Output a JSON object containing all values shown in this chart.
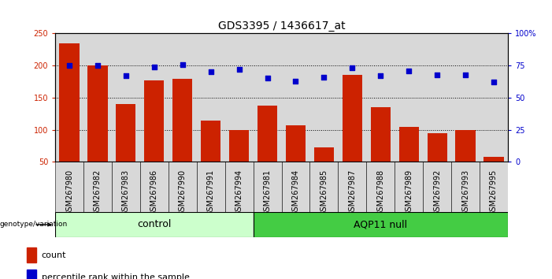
{
  "title": "GDS3395 / 1436617_at",
  "categories": [
    "GSM267980",
    "GSM267982",
    "GSM267983",
    "GSM267986",
    "GSM267990",
    "GSM267991",
    "GSM267994",
    "GSM267981",
    "GSM267984",
    "GSM267985",
    "GSM267987",
    "GSM267988",
    "GSM267989",
    "GSM267992",
    "GSM267993",
    "GSM267995"
  ],
  "bar_values": [
    235,
    200,
    140,
    177,
    179,
    114,
    100,
    138,
    107,
    72,
    186,
    135,
    105,
    95,
    100,
    58
  ],
  "percentile_values": [
    75,
    75,
    67,
    74,
    76,
    70,
    72,
    65,
    63,
    66,
    73,
    67,
    71,
    68,
    68,
    62
  ],
  "bar_color": "#cc2200",
  "dot_color": "#0000cc",
  "ylim_left": [
    50,
    250
  ],
  "ylim_right": [
    0,
    100
  ],
  "yticks_left": [
    50,
    100,
    150,
    200,
    250
  ],
  "yticks_right": [
    0,
    25,
    50,
    75,
    100
  ],
  "yticklabels_right": [
    "0",
    "25",
    "50",
    "75",
    "100%"
  ],
  "grid_lines": [
    100,
    150,
    200
  ],
  "control_count": 7,
  "control_label": "control",
  "aqp_label": "AQP11 null",
  "genotype_label": "genotype/variation",
  "legend_count": "count",
  "legend_percentile": "percentile rank within the sample",
  "control_color": "#ccffcc",
  "aqp_color": "#44cc44",
  "col_bg_color": "#d8d8d8",
  "bar_width": 0.7,
  "title_fontsize": 10,
  "tick_fontsize": 7,
  "label_fontsize": 8
}
